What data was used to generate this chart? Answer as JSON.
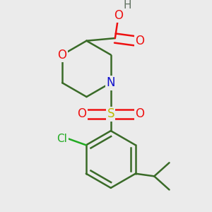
{
  "bg_color": "#ebebeb",
  "line_color": "#3a6b28",
  "bond_width": 1.8,
  "atom_colors": {
    "O": "#ee1111",
    "N": "#1111cc",
    "S": "#bbbb00",
    "Cl": "#22aa22",
    "H": "#607060",
    "C": "#3a6b28"
  },
  "font_size": 11
}
